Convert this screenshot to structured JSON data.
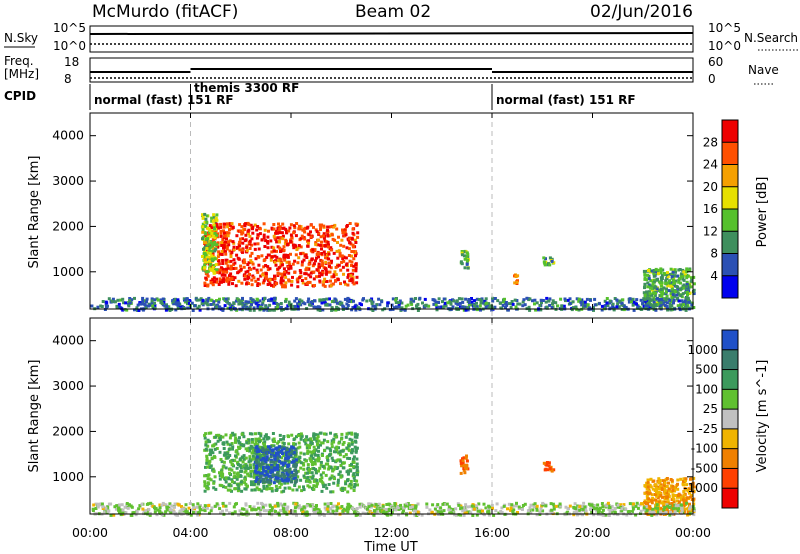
{
  "header": {
    "radar": "McMurdo (fitACF)",
    "beam": "Beam 02",
    "date": "02/Jun/2016"
  },
  "summary": {
    "nsky_label": "N.Sky",
    "nsearch_label": "N.Search",
    "nsky_ticks": [
      "10^5",
      "10^0"
    ],
    "nsearch_ticks": [
      "10^5",
      "10^0"
    ],
    "freq_label_1": "Freq.",
    "freq_label_2": "[MHz]",
    "freq_ticks": [
      "18",
      "8"
    ],
    "nave_label": "Nave",
    "nave_ticks": [
      "60",
      "0"
    ],
    "cpid_label": "CPID",
    "cpid_segments": [
      {
        "name": "normal (fast) 151 RF",
        "start_hour": 0,
        "end_hour": 4.0
      },
      {
        "name": "themis 3300 RF",
        "start_hour": 4.0,
        "end_hour": 16.0
      },
      {
        "name": "normal (fast) 151 RF",
        "start_hour": 16.0,
        "end_hour": 24.0
      }
    ]
  },
  "axes": {
    "ylabel": "Slant Range [km]",
    "xlabel": "Time UT",
    "x_ticks": [
      "00:00",
      "04:00",
      "08:00",
      "12:00",
      "16:00",
      "20:00",
      "00:00"
    ],
    "y_ticks": [
      "1000",
      "2000",
      "3000",
      "4000"
    ]
  },
  "power_scale": {
    "label": "Power [dB]",
    "tick_labels": [
      "4",
      "8",
      "12",
      "16",
      "20",
      "24",
      "28"
    ],
    "colors": [
      "#0000ee",
      "#2b50b4",
      "#3f8f5e",
      "#55c02c",
      "#e6e000",
      "#f5a000",
      "#ff5000",
      "#ee0000"
    ]
  },
  "velocity_scale": {
    "label": "Velocity [m s^-1]",
    "tick_labels": [
      "1000",
      "500",
      "100",
      "25",
      "-25",
      "-100",
      "-500",
      "-1000"
    ],
    "colors": [
      "#2050c8",
      "#3a7d6c",
      "#3c9a5c",
      "#60c030",
      "#c0c0c0",
      "#f0b400",
      "#f08000",
      "#ff4000",
      "#ee0000"
    ]
  },
  "chart_data": {
    "type": "heatmap",
    "x_range_hours": [
      0,
      24
    ],
    "y_range_km": [
      180,
      4500
    ],
    "x_unit": "hours UT",
    "y_unit": "km",
    "cpid_change_hours": [
      4.0,
      16.0
    ],
    "power_clusters": [
      {
        "t0": 4.5,
        "t1": 10.6,
        "r0": 700,
        "r1": 2100,
        "level": 28
      },
      {
        "t0": 4.4,
        "t1": 5.0,
        "r0": 1000,
        "r1": 2300,
        "level": 16
      },
      {
        "t0": 14.7,
        "t1": 15.0,
        "r0": 1100,
        "r1": 1500,
        "level": 12
      },
      {
        "t0": 18.0,
        "t1": 18.4,
        "r0": 1150,
        "r1": 1350,
        "level": 12
      },
      {
        "t0": 16.8,
        "t1": 17.0,
        "r0": 700,
        "r1": 1000,
        "level": 24
      },
      {
        "t0": 22.0,
        "t1": 24.0,
        "r0": 200,
        "r1": 1100,
        "level": 12
      },
      {
        "t0": 0.0,
        "t1": 24.0,
        "r0": 180,
        "r1": 450,
        "level": 8
      }
    ],
    "velocity_clusters": [
      {
        "t0": 4.5,
        "t1": 10.6,
        "r0": 700,
        "r1": 2000,
        "level": 100
      },
      {
        "t0": 6.5,
        "t1": 8.2,
        "r0": 900,
        "r1": 1700,
        "level": 1000
      },
      {
        "t0": 14.7,
        "t1": 15.0,
        "r0": 1100,
        "r1": 1500,
        "level": -500
      },
      {
        "t0": 18.0,
        "t1": 18.4,
        "r0": 1150,
        "r1": 1350,
        "level": -500
      },
      {
        "t0": 22.0,
        "t1": 24.0,
        "r0": 200,
        "r1": 1000,
        "level": -100
      },
      {
        "t0": 0.0,
        "t1": 24.0,
        "r0": 180,
        "r1": 450,
        "level": 25
      }
    ]
  }
}
